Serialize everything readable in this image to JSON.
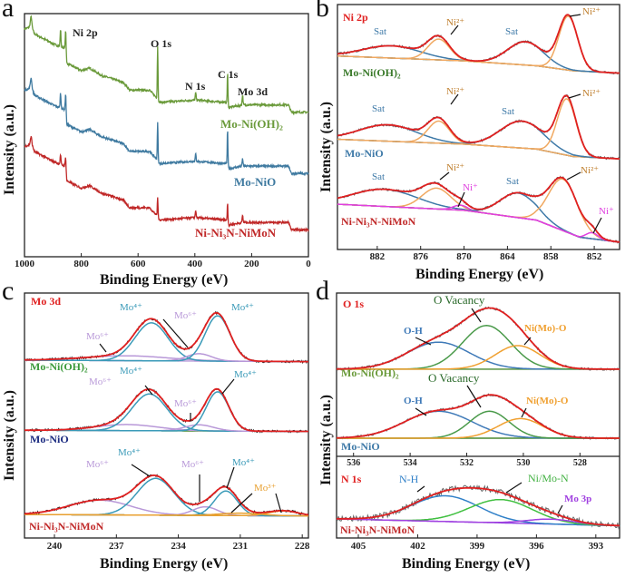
{
  "panels": {
    "a": {
      "letter": "a",
      "xlabel": "Binding Energy (eV)",
      "ylabel": "Intensity (a.u.)",
      "annotations": {
        "ni2p": "Ni 2p",
        "o1s": "O 1s",
        "n1s": "N 1s",
        "c1s": "C 1s",
        "mo3d": "Mo 3d"
      },
      "series": [
        "Mo-Ni(OH)₂",
        "Mo-NiO",
        "Ni-Ni₃N-NiMoN"
      ]
    },
    "b": {
      "letter": "b",
      "title": "Ni 2p",
      "xlabel": "Binding Energy (eV)",
      "ylabel": "Intensity (a.u.)",
      "series": [
        "Mo-Ni(OH)₂",
        "Mo-NiO",
        "Ni-Ni₃N-NiMoN"
      ],
      "annotations": {
        "sat": "Sat",
        "ni2": "Ni²⁺",
        "ni1": "Ni⁺"
      }
    },
    "c": {
      "letter": "c",
      "title": "Mo 3d",
      "xlabel": "Binding Energy (eV)",
      "ylabel": "Intensity (a.u.)",
      "series": [
        "Mo-Ni(OH)₂",
        "Mo-NiO",
        "Ni-Ni₃N-NiMoN"
      ],
      "annotations": {
        "mo4": "Mo⁴⁺",
        "mo6": "Mo⁶⁺",
        "mo3": "Mo³⁺"
      }
    },
    "d": {
      "letter": "d",
      "title_o": "O 1s",
      "title_n": "N 1s",
      "xlabel": "Binding Energy (eV)",
      "ylabel": "Intensity (a.u.)",
      "series": [
        "Mo-Ni(OH)₂",
        "Mo-NiO",
        "Ni-Ni₃N-NiMoN"
      ],
      "annotations": {
        "ovac": "O Vacancy",
        "oh": "O-H",
        "nimoo": "Ni(Mo)-O",
        "nh": "N-H",
        "nimon": "Ni/Mo-N",
        "mo3p": "Mo 3p"
      }
    }
  },
  "chart_data": [
    {
      "panel": "a",
      "type": "line",
      "title": "",
      "xlabel": "Binding Energy (eV)",
      "ylabel": "Intensity (a.u.)",
      "xlim": [
        1000,
        0
      ],
      "xticks": [
        1000,
        800,
        600,
        400,
        200,
        0
      ],
      "grid": false,
      "legend": "inline labels",
      "background": [
        [
          1000,
          9.3
        ],
        [
          975,
          9.4
        ],
        [
          965,
          9.1
        ],
        [
          900,
          8.7
        ],
        [
          858,
          8.5
        ],
        [
          851,
          7.9
        ],
        [
          800,
          7.6
        ],
        [
          770,
          7.7
        ],
        [
          730,
          7.4
        ],
        [
          700,
          7.3
        ],
        [
          650,
          7.1
        ],
        [
          630,
          6.8
        ],
        [
          560,
          6.8
        ],
        [
          535,
          6.5
        ],
        [
          525,
          6.3
        ],
        [
          400,
          6.4
        ],
        [
          290,
          6.3
        ],
        [
          280,
          6.1
        ],
        [
          230,
          6.2
        ],
        [
          120,
          6.2
        ],
        [
          70,
          6.2
        ],
        [
          60,
          5.9
        ],
        [
          0,
          5.9
        ]
      ],
      "series": [
        {
          "name": "Mo-Ni(OH)₂",
          "color": "#6a9a3a",
          "offset": 0,
          "peaks": [
            [
              977,
              0.4,
              5
            ],
            [
              873,
              0.7,
              3
            ],
            [
              855,
              1.0,
              3
            ],
            [
              531,
              2.2,
              2.5
            ],
            [
              397,
              0.3,
              3
            ],
            [
              284.8,
              1.3,
              2.5
            ],
            [
              232,
              0.4,
              3
            ]
          ]
        },
        {
          "name": "Mo-NiO",
          "color": "#3f7aa0",
          "offset": -2.5,
          "peaks": [
            [
              977,
              0.4,
              5
            ],
            [
              873,
              0.6,
              3
            ],
            [
              855,
              0.9,
              3
            ],
            [
              531,
              1.6,
              2.5
            ],
            [
              397,
              0.3,
              3
            ],
            [
              284.8,
              1.5,
              2.5
            ],
            [
              232,
              0.3,
              3
            ]
          ]
        },
        {
          "name": "Ni-Ni₃N-NiMoN",
          "color": "#c02828",
          "offset": -4.8,
          "peaks": [
            [
              977,
              0.3,
              5
            ],
            [
              873,
              0.4,
              3
            ],
            [
              855,
              0.6,
              3
            ],
            [
              531,
              0.8,
              2.5
            ],
            [
              397,
              0.3,
              3
            ],
            [
              284.8,
              0.8,
              2.5
            ],
            [
              232,
              0.3,
              3
            ]
          ]
        }
      ]
    },
    {
      "panel": "b",
      "type": "line",
      "title": "Ni 2p",
      "xlabel": "Binding Energy (eV)",
      "ylabel": "Intensity (a.u.)",
      "xlim": [
        887.5,
        848.5
      ],
      "xticks": [
        882,
        876,
        870,
        864,
        858,
        852
      ],
      "grid": false,
      "series": [
        {
          "name": "Mo-Ni(OH)₂",
          "baseline": [
            [
              887.5,
              7.9
            ],
            [
              870,
              7.7
            ],
            [
              860,
              7.5
            ],
            [
              855,
              7.3
            ],
            [
              848.5,
              7.2
            ]
          ],
          "components": [
            {
              "label": "Sat",
              "center": 880,
              "height": 0.5,
              "sigma": 4,
              "color": "#3f7aa8"
            },
            {
              "label": "Ni²⁺",
              "center": 873.5,
              "height": 0.85,
              "sigma": 1.5,
              "color": "#f0a860"
            },
            {
              "label": "Sat",
              "center": 861.5,
              "height": 0.95,
              "sigma": 2.5,
              "color": "#3f7aa8"
            },
            {
              "label": "Ni²⁺",
              "center": 855.6,
              "height": 2.2,
              "sigma": 1.3,
              "color": "#f0a860"
            }
          ]
        },
        {
          "name": "Mo-NiO",
          "baseline": [
            [
              887.5,
              4.5
            ],
            [
              870,
              4.3
            ],
            [
              860,
              4.1
            ],
            [
              855,
              3.8
            ],
            [
              848.5,
              3.7
            ]
          ],
          "components": [
            {
              "label": "Sat",
              "center": 880.5,
              "height": 0.67,
              "sigma": 4,
              "color": "#3f7aa8"
            },
            {
              "label": "Ni²⁺",
              "center": 873.5,
              "height": 0.9,
              "sigma": 1.5,
              "color": "#f0a860"
            },
            {
              "label": "Sat",
              "center": 862,
              "height": 1.1,
              "sigma": 3,
              "color": "#3f7aa8"
            },
            {
              "label": "Ni²⁺",
              "center": 855.8,
              "height": 2.3,
              "sigma": 1.3,
              "color": "#f0a860"
            }
          ]
        },
        {
          "name": "Ni-Ni₃N-NiMoN",
          "baseline": [
            [
              887.5,
              1.85
            ],
            [
              870,
              1.6
            ],
            [
              860,
              1.2
            ],
            [
              854,
              0.5
            ],
            [
              848.5,
              0.3
            ]
          ],
          "components": [
            {
              "label": "Sat",
              "center": 881,
              "height": 0.7,
              "sigma": 4.5,
              "color": "#3f7aa8"
            },
            {
              "label": "Ni²⁺",
              "center": 873.8,
              "height": 0.85,
              "sigma": 2,
              "color": "#f0a860"
            },
            {
              "label": "Ni⁺",
              "center": 870.5,
              "height": 0.2,
              "sigma": 1,
              "color": "#e040e0"
            },
            {
              "label": "Sat",
              "center": 862.5,
              "height": 1.0,
              "sigma": 2.5,
              "color": "#3f7aa8"
            },
            {
              "label": "Ni²⁺",
              "center": 856.3,
              "height": 2.1,
              "sigma": 2,
              "color": "#f0a860"
            },
            {
              "label": "Ni⁺",
              "center": 852.3,
              "height": 0.25,
              "sigma": 0.8,
              "color": "#e040e0"
            }
          ]
        }
      ]
    },
    {
      "panel": "c",
      "type": "line",
      "title": "Mo 3d",
      "xlabel": "Binding Energy (eV)",
      "ylabel": "Intensity (a.u.)",
      "xlim": [
        241.45,
        227.7
      ],
      "xticks": [
        240,
        237,
        234,
        231,
        228
      ],
      "grid": false,
      "series": [
        {
          "name": "Mo-Ni(OH)₂",
          "baseline": [
            [
              241.45,
              7.26
            ],
            [
              227.7,
              7.2
            ]
          ],
          "components": [
            {
              "label": "Mo⁶⁺",
              "center": 236.5,
              "height": 0.2,
              "sigma": 2,
              "color": "#b898d8"
            },
            {
              "label": "Mo⁴⁺",
              "center": 235.3,
              "height": 1.55,
              "sigma": 0.8,
              "color": "#3a9ab8"
            },
            {
              "label": "Mo⁶⁺",
              "center": 233.0,
              "height": 0.3,
              "sigma": 0.6,
              "color": "#b898d8"
            },
            {
              "label": "Mo⁴⁺",
              "center": 232.1,
              "height": 1.85,
              "sigma": 0.6,
              "color": "#3a9ab8"
            }
          ]
        },
        {
          "name": "Mo-NiO",
          "baseline": [
            [
              241.45,
              4.4
            ],
            [
              227.7,
              4.35
            ]
          ],
          "components": [
            {
              "label": "Mo⁶⁺",
              "center": 236.5,
              "height": 0.25,
              "sigma": 1.5,
              "color": "#b898d8"
            },
            {
              "label": "Mo⁴⁺",
              "center": 235.4,
              "height": 1.5,
              "sigma": 0.85,
              "color": "#3a9ab8"
            },
            {
              "label": "Mo⁶⁺",
              "center": 233.0,
              "height": 0.25,
              "sigma": 0.7,
              "color": "#b898d8"
            },
            {
              "label": "Mo⁴⁺",
              "center": 232.1,
              "height": 1.6,
              "sigma": 0.55,
              "color": "#3a9ab8"
            }
          ]
        },
        {
          "name": "Ni-Ni₃N-NiMoN",
          "baseline": [
            [
              241.45,
              0.96
            ],
            [
              227.7,
              0.9
            ]
          ],
          "components": [
            {
              "label": "Mo⁶⁺",
              "center": 237.8,
              "height": 0.6,
              "sigma": 1.5,
              "color": "#b898d8"
            },
            {
              "label": "Mo⁴⁺",
              "center": 235.1,
              "height": 1.5,
              "sigma": 0.9,
              "color": "#3a9ab8"
            },
            {
              "label": "Mo⁶⁺",
              "center": 232.7,
              "height": 0.35,
              "sigma": 0.6,
              "color": "#b898d8"
            },
            {
              "label": "Mo⁴⁺",
              "center": 231.7,
              "height": 1.0,
              "sigma": 0.55,
              "color": "#3a9ab8"
            },
            {
              "label": "Mo³⁺",
              "center": 231.0,
              "height": 0.1,
              "sigma": 1.0,
              "color": "#e8a030"
            },
            {
              "label": "Mo³⁺",
              "center": 228.9,
              "height": 0.2,
              "sigma": 0.7,
              "color": "#e8a030"
            }
          ]
        }
      ]
    },
    {
      "panel": "d",
      "subplot": "O 1s",
      "type": "line",
      "title": "O 1s",
      "ylabel": "Intensity (a.u.)",
      "xlim": [
        536.6,
        526.6
      ],
      "xticks": [
        536,
        534,
        532,
        530,
        528
      ],
      "grid": false,
      "series": [
        {
          "name": "Mo-Ni(OH)₂",
          "baseline": [
            [
              536.6,
              3.56
            ],
            [
              526.6,
              3.56
            ]
          ],
          "components": [
            {
              "label": "O-H",
              "center": 533,
              "height": 1.1,
              "sigma": 1.1,
              "color": "#3f7ab8"
            },
            {
              "label": "O Vacancy",
              "center": 531.3,
              "height": 1.78,
              "sigma": 0.85,
              "color": "#4a9a4a"
            },
            {
              "label": "Ni(Mo)-O",
              "center": 530.2,
              "height": 0.96,
              "sigma": 0.8,
              "color": "#f0a030"
            }
          ]
        },
        {
          "name": "Mo-NiO",
          "baseline": [
            [
              536.6,
              0.74
            ],
            [
              526.6,
              0.74
            ]
          ],
          "components": [
            {
              "label": "O-H",
              "center": 533,
              "height": 1.1,
              "sigma": 1.2,
              "color": "#3f7ab8"
            },
            {
              "label": "O Vacancy",
              "center": 531.2,
              "height": 1.1,
              "sigma": 0.7,
              "color": "#4a9a4a"
            },
            {
              "label": "Ni(Mo)-O",
              "center": 530.1,
              "height": 0.8,
              "sigma": 0.8,
              "color": "#f0a030"
            }
          ]
        }
      ]
    },
    {
      "panel": "d",
      "subplot": "N 1s",
      "type": "line",
      "title": "N 1s",
      "xlabel": "Binding Energy (eV)",
      "xlim": [
        406.1,
        391.8
      ],
      "xticks": [
        405,
        402,
        399,
        396,
        393
      ],
      "grid": false,
      "series": [
        {
          "name": "Ni-Ni₃N-NiMoN",
          "baseline": [
            [
              406.1,
              0.78
            ],
            [
              391.8,
              0.5
            ]
          ],
          "components": [
            {
              "label": "N-H",
              "center": 400.6,
              "height": 1.05,
              "sigma": 1.7,
              "color": "#3080c8"
            },
            {
              "label": "Ni/Mo-N",
              "center": 397.8,
              "height": 0.95,
              "sigma": 1.6,
              "color": "#40c040"
            },
            {
              "label": "Mo 3p",
              "center": 395.3,
              "height": 0.2,
              "sigma": 1.2,
              "color": "#a040e0"
            }
          ]
        }
      ]
    }
  ],
  "colors": {
    "envelope": "#e02020",
    "baseline_b": "#4a8a30",
    "baseline_n": "#9040e0",
    "raw": "#555555",
    "title": "#e02020"
  }
}
